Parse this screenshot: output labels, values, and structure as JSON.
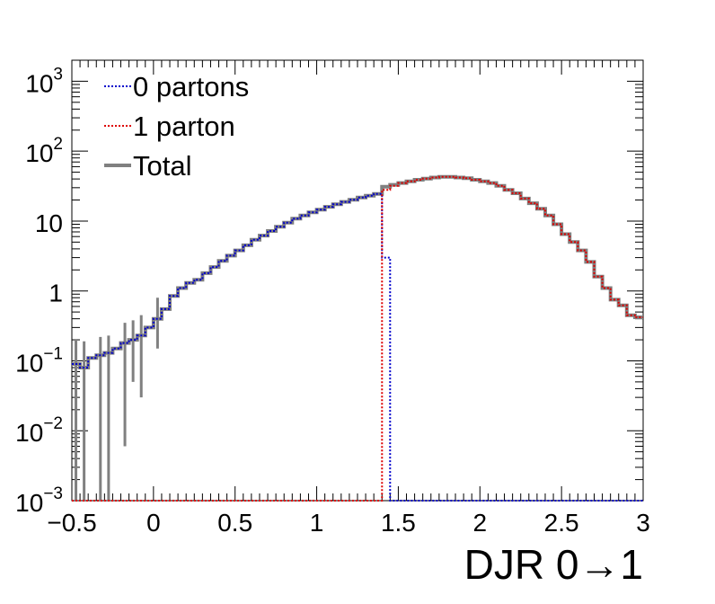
{
  "chart_data": {
    "type": "line",
    "title": "",
    "xlabel": "DJR 0→1",
    "ylabel": "",
    "xlim": [
      -0.5,
      3.0
    ],
    "ylim": [
      0.001,
      2000
    ],
    "y_scale": "log",
    "grid": false,
    "legend_position": "top-left",
    "x_ticks": [
      {
        "value": -0.5,
        "label": "−0.5"
      },
      {
        "value": 0,
        "label": "0"
      },
      {
        "value": 0.5,
        "label": "0.5"
      },
      {
        "value": 1,
        "label": "1"
      },
      {
        "value": 1.5,
        "label": "1.5"
      },
      {
        "value": 2,
        "label": "2"
      },
      {
        "value": 2.5,
        "label": "2.5"
      },
      {
        "value": 3,
        "label": "3"
      }
    ],
    "y_ticks": [
      {
        "value": 1000,
        "base": "10",
        "exp": "3"
      },
      {
        "value": 100,
        "base": "10",
        "exp": "2"
      },
      {
        "value": 10,
        "base": "10",
        "exp": ""
      },
      {
        "value": 1,
        "base": "1",
        "exp": ""
      },
      {
        "value": 0.1,
        "base": "10",
        "exp": "−1"
      },
      {
        "value": 0.01,
        "base": "10",
        "exp": "−2"
      },
      {
        "value": 0.001,
        "base": "10",
        "exp": "−3"
      }
    ],
    "bin_edges": [
      -0.5,
      -0.45,
      -0.4,
      -0.35,
      -0.3,
      -0.25,
      -0.2,
      -0.15,
      -0.1,
      -0.05,
      0.0,
      0.05,
      0.1,
      0.15,
      0.2,
      0.25,
      0.3,
      0.35,
      0.4,
      0.45,
      0.5,
      0.55,
      0.6,
      0.65,
      0.7,
      0.75,
      0.8,
      0.85,
      0.9,
      0.95,
      1.0,
      1.05,
      1.1,
      1.15,
      1.2,
      1.25,
      1.3,
      1.35,
      1.4,
      1.45,
      1.5,
      1.55,
      1.6,
      1.65,
      1.7,
      1.75,
      1.8,
      1.85,
      1.9,
      1.95,
      2.0,
      2.05,
      2.1,
      2.15,
      2.2,
      2.25,
      2.3,
      2.35,
      2.4,
      2.45,
      2.5,
      2.55,
      2.6,
      2.65,
      2.7,
      2.75,
      2.8,
      2.85,
      2.9,
      2.95,
      3.0
    ],
    "series": [
      {
        "name": "0 partons",
        "color": "#0000cc",
        "style": "dotted",
        "values": [
          0.09,
          0.08,
          0.11,
          0.12,
          0.13,
          0.15,
          0.18,
          0.2,
          0.23,
          0.3,
          0.4,
          0.55,
          0.85,
          1.1,
          1.3,
          1.45,
          1.8,
          2.2,
          2.7,
          3.2,
          3.8,
          4.5,
          5.4,
          6.2,
          7.2,
          8.3,
          9.5,
          10.8,
          12.0,
          13.3,
          14.6,
          16.0,
          17.4,
          18.8,
          20.2,
          21.7,
          23.0,
          24.5,
          3.0,
          0.001,
          0.001,
          0.001,
          0.001,
          0.001,
          0.001,
          0.001,
          0.001,
          0.001,
          0.001,
          0.001,
          0.001,
          0.001,
          0.001,
          0.001,
          0.001,
          0.001,
          0.001,
          0.001,
          0.001,
          0.001,
          0.001,
          0.001,
          0.001,
          0.001,
          0.001,
          0.001,
          0.001,
          0.001,
          0.001,
          0.001
        ]
      },
      {
        "name": "1 parton",
        "color": "#dd0000",
        "style": "dotted",
        "values": [
          0.001,
          0.001,
          0.001,
          0.001,
          0.001,
          0.001,
          0.001,
          0.001,
          0.001,
          0.001,
          0.001,
          0.001,
          0.001,
          0.001,
          0.001,
          0.001,
          0.001,
          0.001,
          0.001,
          0.001,
          0.001,
          0.001,
          0.001,
          0.001,
          0.001,
          0.001,
          0.001,
          0.001,
          0.001,
          0.001,
          0.001,
          0.001,
          0.001,
          0.001,
          0.001,
          0.001,
          0.001,
          0.001,
          28.0,
          32.0,
          35.0,
          37.0,
          39.0,
          40.5,
          42.0,
          43.0,
          43.0,
          42.0,
          41.0,
          39.0,
          37.0,
          35.0,
          32.0,
          28.0,
          25.0,
          21.0,
          18.0,
          15.0,
          12.0,
          9.0,
          6.5,
          5.0,
          3.8,
          2.6,
          1.6,
          1.1,
          0.75,
          0.62,
          0.45,
          0.42
        ]
      },
      {
        "name": "Total",
        "color": "#808080",
        "style": "solid",
        "values": [
          0.09,
          0.08,
          0.11,
          0.12,
          0.13,
          0.15,
          0.18,
          0.2,
          0.23,
          0.3,
          0.4,
          0.55,
          0.85,
          1.1,
          1.3,
          1.45,
          1.8,
          2.2,
          2.7,
          3.2,
          3.8,
          4.5,
          5.4,
          6.2,
          7.2,
          8.3,
          9.5,
          10.8,
          12.0,
          13.3,
          14.6,
          16.0,
          17.4,
          18.8,
          20.2,
          21.7,
          23.0,
          24.5,
          31.0,
          33.0,
          35.0,
          37.0,
          39.0,
          40.5,
          42.0,
          43.0,
          43.0,
          42.0,
          41.0,
          39.0,
          37.0,
          35.0,
          32.0,
          28.0,
          25.0,
          21.0,
          18.0,
          15.0,
          12.0,
          9.0,
          6.5,
          5.0,
          3.8,
          2.6,
          1.6,
          1.1,
          0.75,
          0.62,
          0.45,
          0.42
        ],
        "error_bars": [
          {
            "x": -0.475,
            "low": 0.001,
            "high": 0.2
          },
          {
            "x": -0.425,
            "low": 0.001,
            "high": 0.19
          },
          {
            "x": -0.325,
            "low": 0.001,
            "high": 0.22
          },
          {
            "x": -0.275,
            "low": 0.001,
            "high": 0.23
          },
          {
            "x": -0.175,
            "low": 0.006,
            "high": 0.35
          },
          {
            "x": -0.125,
            "low": 0.05,
            "high": 0.38
          },
          {
            "x": -0.075,
            "low": 0.03,
            "high": 0.45
          },
          {
            "x": 0.025,
            "low": 0.15,
            "high": 0.8
          }
        ]
      }
    ]
  }
}
